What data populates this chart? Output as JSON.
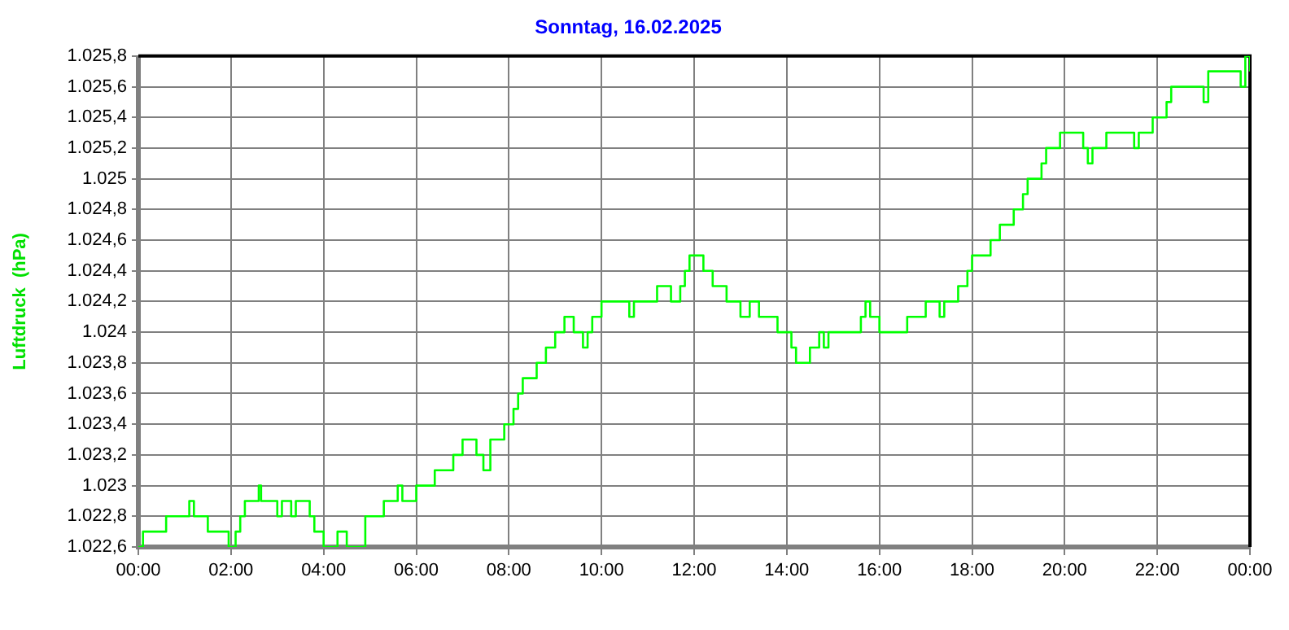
{
  "chart_data": {
    "type": "step",
    "title": "Sonntag, 16.02.2025",
    "ylabel": "Luftdruck  (hPa)",
    "xlim": [
      0,
      24
    ],
    "xticks": [
      {
        "value": 0,
        "label": "00:00"
      },
      {
        "value": 2,
        "label": "02:00"
      },
      {
        "value": 4,
        "label": "04:00"
      },
      {
        "value": 6,
        "label": "06:00"
      },
      {
        "value": 8,
        "label": "08:00"
      },
      {
        "value": 10,
        "label": "10:00"
      },
      {
        "value": 12,
        "label": "12:00"
      },
      {
        "value": 14,
        "label": "14:00"
      },
      {
        "value": 16,
        "label": "16:00"
      },
      {
        "value": 18,
        "label": "18:00"
      },
      {
        "value": 20,
        "label": "20:00"
      },
      {
        "value": 22,
        "label": "22:00"
      },
      {
        "value": 24,
        "label": "00:00"
      }
    ],
    "ylim": [
      1022.6,
      1025.8
    ],
    "yticks": [
      {
        "value": 1022.6,
        "label": "1.022,6"
      },
      {
        "value": 1022.8,
        "label": "1.022,8"
      },
      {
        "value": 1023,
        "label": "1.023"
      },
      {
        "value": 1023.2,
        "label": "1.023,2"
      },
      {
        "value": 1023.4,
        "label": "1.023,4"
      },
      {
        "value": 1023.6,
        "label": "1.023,6"
      },
      {
        "value": 1023.8,
        "label": "1.023,8"
      },
      {
        "value": 1024,
        "label": "1.024"
      },
      {
        "value": 1024.2,
        "label": "1.024,2"
      },
      {
        "value": 1024.4,
        "label": "1.024,4"
      },
      {
        "value": 1024.6,
        "label": "1.024,6"
      },
      {
        "value": 1024.8,
        "label": "1.024,8"
      },
      {
        "value": 1025,
        "label": "1.025"
      },
      {
        "value": 1025.2,
        "label": "1.025,2"
      },
      {
        "value": 1025.4,
        "label": "1.025,4"
      },
      {
        "value": 1025.6,
        "label": "1.025,6"
      },
      {
        "value": 1025.8,
        "label": "1.025,8"
      }
    ],
    "grid": true,
    "legend": false,
    "marker": "none",
    "line_style": "solid",
    "series": [
      {
        "color": "#00ff00",
        "x": [
          0,
          0.1,
          0.15,
          0.6,
          1.1,
          1.2,
          1.5,
          1.95,
          2.1,
          2.2,
          2.3,
          2.6,
          2.65,
          3.0,
          3.1,
          3.3,
          3.4,
          3.7,
          3.8,
          4.0,
          4.3,
          4.5,
          4.9,
          5.3,
          5.6,
          5.7,
          6.0,
          6.4,
          6.8,
          7.0,
          7.3,
          7.45,
          7.6,
          7.9,
          8.1,
          8.2,
          8.3,
          8.6,
          8.8,
          9.0,
          9.2,
          9.4,
          9.6,
          9.7,
          9.8,
          10.0,
          10.6,
          10.7,
          11.2,
          11.5,
          11.7,
          11.8,
          11.9,
          12.2,
          12.4,
          12.7,
          13.0,
          13.2,
          13.4,
          13.6,
          13.8,
          14.1,
          14.2,
          14.5,
          14.7,
          14.8,
          14.9,
          15.6,
          15.7,
          15.8,
          16.0,
          16.6,
          17.0,
          17.3,
          17.4,
          17.7,
          17.9,
          18.0,
          18.4,
          18.6,
          18.9,
          19.1,
          19.2,
          19.5,
          19.6,
          19.9,
          20.4,
          20.5,
          20.6,
          20.8,
          20.9,
          21.5,
          21.6,
          21.9,
          22.2,
          22.3,
          23.0,
          23.1,
          23.8,
          23.9,
          24
        ],
        "values": [
          1022.6,
          1022.7,
          1022.7,
          1022.8,
          1022.9,
          1022.8,
          1022.7,
          1022.6,
          1022.7,
          1022.8,
          1022.9,
          1023.0,
          1022.9,
          1022.8,
          1022.9,
          1022.8,
          1022.9,
          1022.8,
          1022.7,
          1022.6,
          1022.7,
          1022.6,
          1022.8,
          1022.9,
          1023.0,
          1022.9,
          1023.0,
          1023.1,
          1023.2,
          1023.3,
          1023.2,
          1023.1,
          1023.3,
          1023.4,
          1023.5,
          1023.6,
          1023.7,
          1023.8,
          1023.9,
          1024.0,
          1024.1,
          1024.0,
          1023.9,
          1024.0,
          1024.1,
          1024.2,
          1024.1,
          1024.2,
          1024.3,
          1024.2,
          1024.3,
          1024.4,
          1024.5,
          1024.4,
          1024.3,
          1024.2,
          1024.1,
          1024.2,
          1024.1,
          1024.1,
          1024.0,
          1023.9,
          1023.8,
          1023.9,
          1024.0,
          1023.9,
          1024.0,
          1024.1,
          1024.2,
          1024.1,
          1024.0,
          1024.1,
          1024.2,
          1024.1,
          1024.2,
          1024.3,
          1024.4,
          1024.5,
          1024.6,
          1024.7,
          1024.8,
          1024.9,
          1025.0,
          1025.1,
          1025.2,
          1025.3,
          1025.2,
          1025.1,
          1025.2,
          1025.2,
          1025.3,
          1025.2,
          1025.3,
          1025.4,
          1025.5,
          1025.6,
          1025.5,
          1025.7,
          1025.6,
          1025.8,
          1025.7
        ]
      }
    ]
  }
}
